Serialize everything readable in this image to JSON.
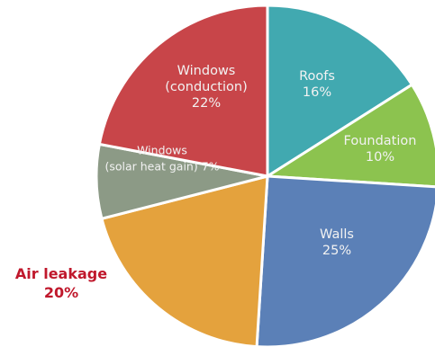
{
  "chart_data": {
    "type": "pie",
    "slices": [
      {
        "name": "Roofs",
        "value": 16,
        "lines": [
          "Roofs",
          "16%"
        ],
        "color": "#41a9b0"
      },
      {
        "name": "Foundation",
        "value": 10,
        "lines": [
          "Foundation",
          "10%"
        ],
        "color": "#8cc34f"
      },
      {
        "name": "Walls",
        "value": 25,
        "lines": [
          "Walls",
          "25%"
        ],
        "color": "#5b80b7"
      },
      {
        "name": "Air leakage",
        "value": 20,
        "lines": [],
        "color": "#e4a23d"
      },
      {
        "name": "Windows (solar heat gain)",
        "value": 7,
        "lines": [
          "Windows",
          "(solar heat gain) 7%"
        ],
        "color": "#8c9a86"
      },
      {
        "name": "Windows (conduction)",
        "value": 22,
        "lines": [
          "Windows",
          "(conduction)",
          "22%"
        ],
        "color": "#c84549"
      }
    ],
    "label_color": "#f2f2f2",
    "outside_label": {
      "line1": "Air leakage",
      "line2": "20%",
      "color": "#c0182c"
    }
  }
}
